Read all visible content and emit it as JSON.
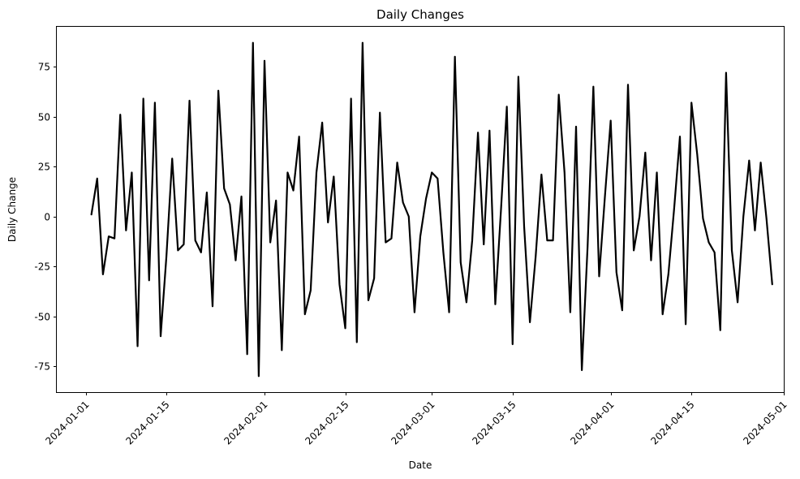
{
  "chart_data": {
    "type": "line",
    "title": "Daily Changes",
    "xlabel": "Date",
    "ylabel": "Daily Change",
    "xlim": [
      "2023-12-27",
      "2024-05-01"
    ],
    "ylim": [
      -88,
      95
    ],
    "grid": false,
    "line_color": "#000000",
    "x_tick_labels": [
      "2024-01-01",
      "2024-01-15",
      "2024-02-01",
      "2024-02-15",
      "2024-03-01",
      "2024-03-15",
      "2024-04-01",
      "2024-04-15",
      "2024-05-01"
    ],
    "y_tick_values": [
      -75,
      -50,
      -25,
      0,
      25,
      50,
      75
    ],
    "series": [
      {
        "x": [
          "2024-01-02",
          "2024-01-03",
          "2024-01-04",
          "2024-01-05",
          "2024-01-06",
          "2024-01-07",
          "2024-01-08",
          "2024-01-09",
          "2024-01-10",
          "2024-01-11",
          "2024-01-12",
          "2024-01-13",
          "2024-01-14",
          "2024-01-15",
          "2024-01-16",
          "2024-01-17",
          "2024-01-18",
          "2024-01-19",
          "2024-01-20",
          "2024-01-21",
          "2024-01-22",
          "2024-01-23",
          "2024-01-24",
          "2024-01-25",
          "2024-01-26",
          "2024-01-27",
          "2024-01-28",
          "2024-01-29",
          "2024-01-30",
          "2024-01-31",
          "2024-02-01",
          "2024-02-02",
          "2024-02-03",
          "2024-02-04",
          "2024-02-05",
          "2024-02-06",
          "2024-02-07",
          "2024-02-08",
          "2024-02-09",
          "2024-02-10",
          "2024-02-11",
          "2024-02-12",
          "2024-02-13",
          "2024-02-14",
          "2024-02-15",
          "2024-02-16",
          "2024-02-17",
          "2024-02-18",
          "2024-02-19",
          "2024-02-20",
          "2024-02-21",
          "2024-02-22",
          "2024-02-23",
          "2024-02-24",
          "2024-02-25",
          "2024-02-26",
          "2024-02-27",
          "2024-02-28",
          "2024-02-29",
          "2024-03-01",
          "2024-03-02",
          "2024-03-03",
          "2024-03-04",
          "2024-03-05",
          "2024-03-06",
          "2024-03-07",
          "2024-03-08",
          "2024-03-09",
          "2024-03-10",
          "2024-03-11",
          "2024-03-12",
          "2024-03-13",
          "2024-03-14",
          "2024-03-15",
          "2024-03-16",
          "2024-03-17",
          "2024-03-18",
          "2024-03-19",
          "2024-03-20",
          "2024-03-21",
          "2024-03-22",
          "2024-03-23",
          "2024-03-24",
          "2024-03-25",
          "2024-03-26",
          "2024-03-27",
          "2024-03-28",
          "2024-03-29",
          "2024-03-30",
          "2024-03-31",
          "2024-04-01",
          "2024-04-02",
          "2024-04-03",
          "2024-04-04",
          "2024-04-05",
          "2024-04-06",
          "2024-04-07",
          "2024-04-08",
          "2024-04-09",
          "2024-04-10",
          "2024-04-11",
          "2024-04-12",
          "2024-04-13",
          "2024-04-14",
          "2024-04-15",
          "2024-04-16",
          "2024-04-17",
          "2024-04-18",
          "2024-04-19",
          "2024-04-20",
          "2024-04-21",
          "2024-04-22",
          "2024-04-23",
          "2024-04-24",
          "2024-04-25",
          "2024-04-26",
          "2024-04-27",
          "2024-04-28",
          "2024-04-29"
        ],
        "y": [
          1,
          19,
          -29,
          -10,
          -11,
          51,
          -7,
          22,
          -65,
          59,
          -32,
          57,
          -60,
          -20,
          29,
          -17,
          -14,
          58,
          -12,
          -18,
          12,
          -45,
          63,
          14,
          6,
          -22,
          10,
          -69,
          87,
          -80,
          78,
          -13,
          8,
          -67,
          22,
          13,
          40,
          -49,
          -37,
          22,
          47,
          -3,
          20,
          -34,
          -56,
          59,
          -63,
          87,
          -42,
          -31,
          52,
          -13,
          -11,
          27,
          7,
          0,
          -48,
          -10,
          9,
          22,
          19,
          -18,
          -48,
          80,
          -23,
          -43,
          -12,
          42,
          -14,
          43,
          -44,
          4,
          55,
          -64,
          70,
          -5,
          -53,
          -20,
          21,
          -12,
          -12,
          61,
          22,
          -48,
          45,
          -77,
          -15,
          65,
          -30,
          10,
          48,
          -28,
          -47,
          66,
          -17,
          0,
          32,
          -22,
          22,
          -49,
          -29,
          4,
          40,
          -54,
          57,
          31,
          -1,
          -13,
          -18,
          -57,
          72,
          -17,
          -43,
          0,
          28,
          -7,
          27,
          -1,
          -34
        ]
      }
    ]
  }
}
